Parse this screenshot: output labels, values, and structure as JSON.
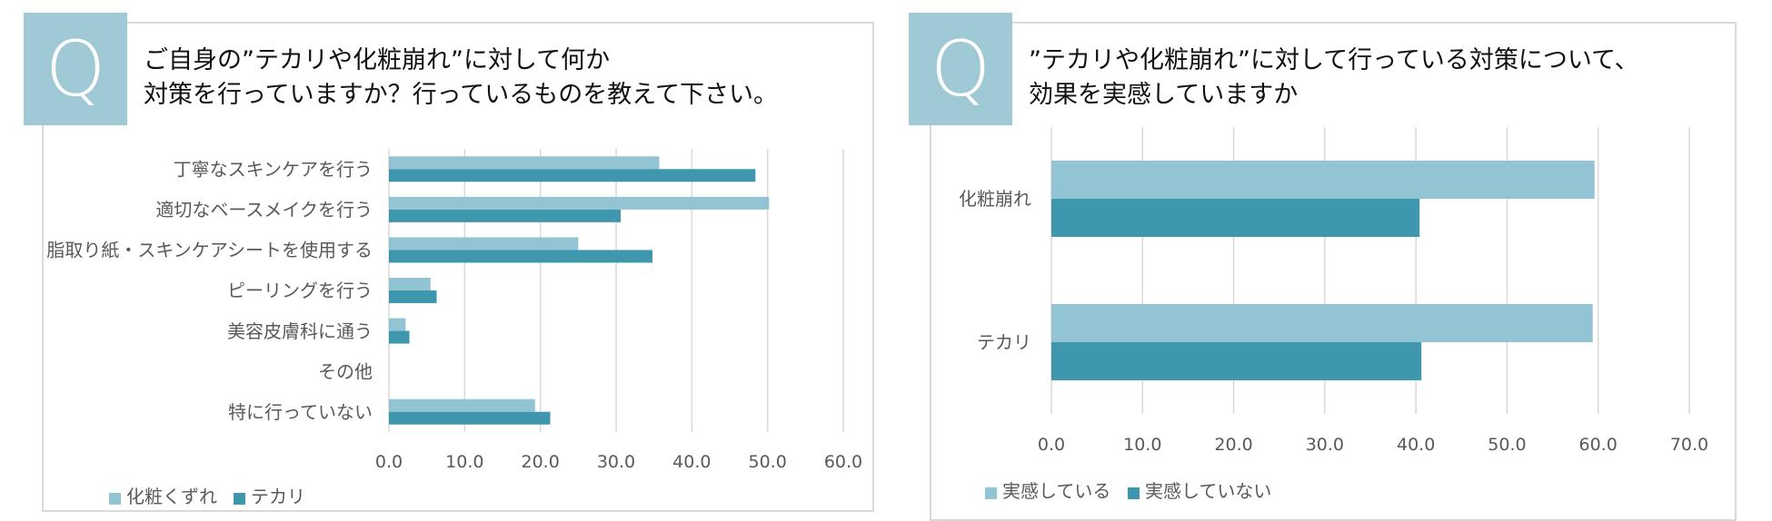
{
  "left": {
    "q_letter": "Q",
    "title_line1": "ご自身の”テカリや化粧崩れ”に対して何か",
    "title_line2": "対策を行っていますか？行っているものを教えて下さい。"
  },
  "right": {
    "q_letter": "Q",
    "title_line1": "”テカリや化粧崩れ”に対して行っている対策について、",
    "title_line2": "効果を実感していますか"
  },
  "colors": {
    "light": "#92c4d3",
    "dark": "#3f97ae",
    "grid": "#d9d9d9",
    "qbox": "#9fcad5"
  },
  "chart_data": [
    {
      "type": "bar",
      "orientation": "horizontal",
      "categories": [
        "丁寧なスキンケアを行う",
        "適切なベースメイクを行う",
        "脂取り紙・スキンケアシートを使用する",
        "ピーリングを行う",
        "美容皮膚科に通う",
        "その他",
        "特に行っていない"
      ],
      "series": [
        {
          "name": "化粧くずれ",
          "values": [
            35.7,
            50.2,
            25.0,
            5.5,
            2.2,
            0.0,
            19.3
          ]
        },
        {
          "name": "テカリ",
          "values": [
            48.4,
            30.6,
            34.8,
            6.3,
            2.7,
            0.0,
            21.3
          ]
        }
      ],
      "xlim": [
        0,
        60
      ],
      "ticks": [
        "0.0",
        "10.0",
        "20.0",
        "30.0",
        "40.0",
        "50.0",
        "60.0"
      ],
      "grid": true,
      "legend": "bottom-left"
    },
    {
      "type": "bar",
      "orientation": "horizontal",
      "categories": [
        "化粧崩れ",
        "テカリ"
      ],
      "series": [
        {
          "name": "実感している",
          "values": [
            59.6,
            59.4
          ]
        },
        {
          "name": "実感していない",
          "values": [
            40.4,
            40.6
          ]
        }
      ],
      "xlim": [
        0,
        70
      ],
      "ticks": [
        "0.0",
        "10.0",
        "20.0",
        "30.0",
        "40.0",
        "50.0",
        "60.0",
        "70.0"
      ],
      "grid": true,
      "legend": "bottom-left"
    }
  ]
}
